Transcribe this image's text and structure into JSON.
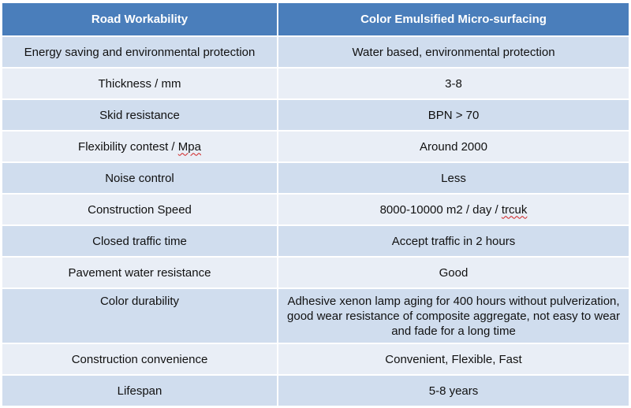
{
  "table": {
    "headers": [
      "Road Workability",
      "Color Emulsified Micro-surfacing"
    ],
    "rows": [
      {
        "property": "Energy saving and environmental protection",
        "value": "Water based, environmental protection"
      },
      {
        "property": "Thickness / mm",
        "value": "3-8"
      },
      {
        "property": "Skid resistance",
        "value": "BPN  > 70"
      },
      {
        "property_prefix": "Flexibility contest / ",
        "property_flagged": "Mpa",
        "value": "Around 2000"
      },
      {
        "property": "Noise control",
        "value": "Less"
      },
      {
        "property": "Construction Speed",
        "value_prefix": "8000-10000 m2 / day / ",
        "value_flagged": "trcuk"
      },
      {
        "property": "Closed traffic time",
        "value": "Accept traffic in 2 hours"
      },
      {
        "property": "Pavement water resistance",
        "value": "Good"
      },
      {
        "property": "Color durability",
        "value": "Adhesive xenon lamp aging for 400 hours without pulverization, good wear resistance of composite aggregate, not easy to wear and fade for a long time"
      },
      {
        "property": "Construction convenience",
        "value": "Convenient, Flexible, Fast"
      },
      {
        "property": "Lifespan",
        "value": "5-8 years"
      }
    ]
  },
  "colors": {
    "header_bg": "#4a7ebb",
    "row_odd_bg": "#d0ddee",
    "row_even_bg": "#e9eef6"
  }
}
